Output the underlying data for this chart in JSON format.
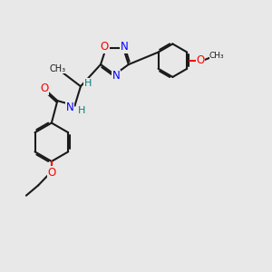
{
  "bg_color": "#e8e8e8",
  "bond_color": "#1a1a1a",
  "lw": 1.5,
  "atom_colors": {
    "O": "#ff0000",
    "N": "#0000ff",
    "C": "#1a1a1a",
    "H": "#008080"
  },
  "fs": 8.5,
  "fs_s": 7.0
}
